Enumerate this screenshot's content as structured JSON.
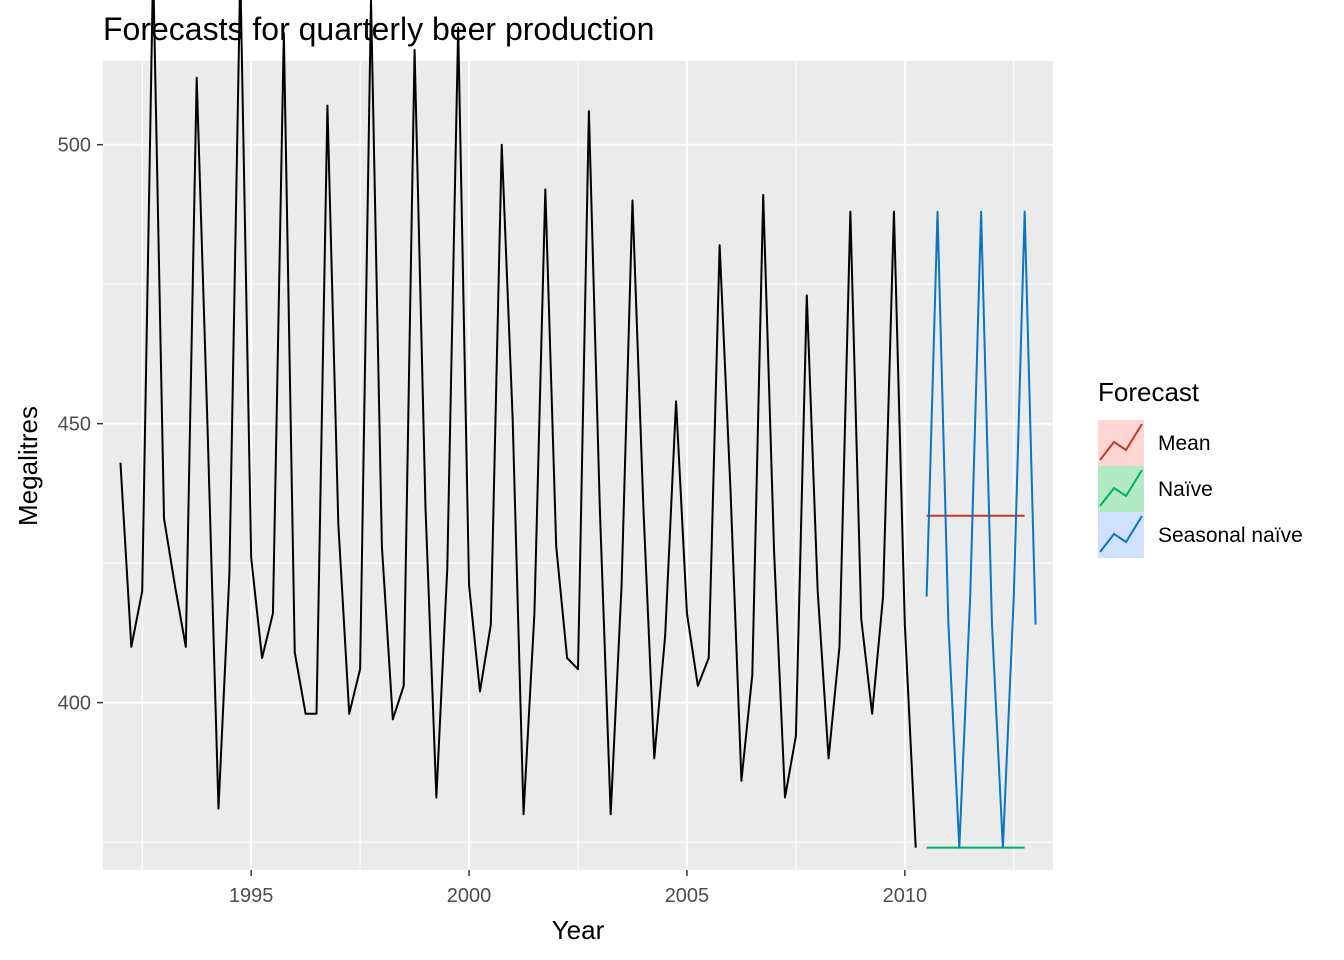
{
  "chart_data": {
    "type": "line",
    "title": "Forecasts for quarterly beer production",
    "xlabel": "Year",
    "ylabel": "Megalitres",
    "xlim": [
      1991.6,
      2013.4
    ],
    "ylim": [
      370,
      515
    ],
    "x_ticks": [
      1995,
      2000,
      2005,
      2010
    ],
    "x_tick_labels": [
      "1995",
      "2000",
      "2005",
      "2010"
    ],
    "y_ticks": [
      400,
      450,
      500
    ],
    "y_tick_labels": [
      "400",
      "450",
      "500"
    ],
    "grid": true,
    "legend": {
      "title": "Forecast",
      "placement": "right",
      "entries": [
        {
          "label": "Mean",
          "color": "#F8766D"
        },
        {
          "label": "Naïve",
          "color": "#00BA38"
        },
        {
          "label": "Seasonal naïve",
          "color": "#619CFF"
        }
      ]
    },
    "actual": {
      "color": "#000000",
      "start": [
        1992,
        1
      ],
      "frequency": 4,
      "values": [
        443,
        410,
        420,
        532,
        433,
        421,
        410,
        512,
        449,
        381,
        423,
        531,
        426,
        408,
        416,
        520,
        409,
        398,
        398,
        507,
        432,
        398,
        406,
        526,
        428,
        397,
        403,
        517,
        435,
        383,
        424,
        521,
        421,
        402,
        414,
        500,
        451,
        380,
        416,
        492,
        428,
        408,
        406,
        506,
        435,
        380,
        421,
        490,
        435,
        390,
        412,
        454,
        416,
        403,
        408,
        482,
        438,
        386,
        405,
        491,
        427,
        383,
        394,
        473,
        420,
        390,
        410,
        488,
        415,
        398,
        419,
        488,
        414,
        374
      ]
    },
    "series": [
      {
        "name": "Mean",
        "color": "#c0392b",
        "start": [
          2010,
          3
        ],
        "frequency": 4,
        "values": [
          433.5,
          433.5,
          433.5,
          433.5,
          433.5,
          433.5,
          433.5,
          433.5,
          433.5,
          433.5
        ]
      },
      {
        "name": "Naïve",
        "color": "#00b16a",
        "start": [
          2010,
          3
        ],
        "frequency": 4,
        "values": [
          374,
          374,
          374,
          374,
          374,
          374,
          374,
          374,
          374,
          374
        ]
      },
      {
        "name": "Seasonal naïve",
        "color": "#0a75c2",
        "start": [
          2010,
          3
        ],
        "frequency": 4,
        "values": [
          419,
          488,
          414,
          374,
          419,
          488,
          414,
          374,
          419,
          488,
          414
        ]
      }
    ]
  }
}
